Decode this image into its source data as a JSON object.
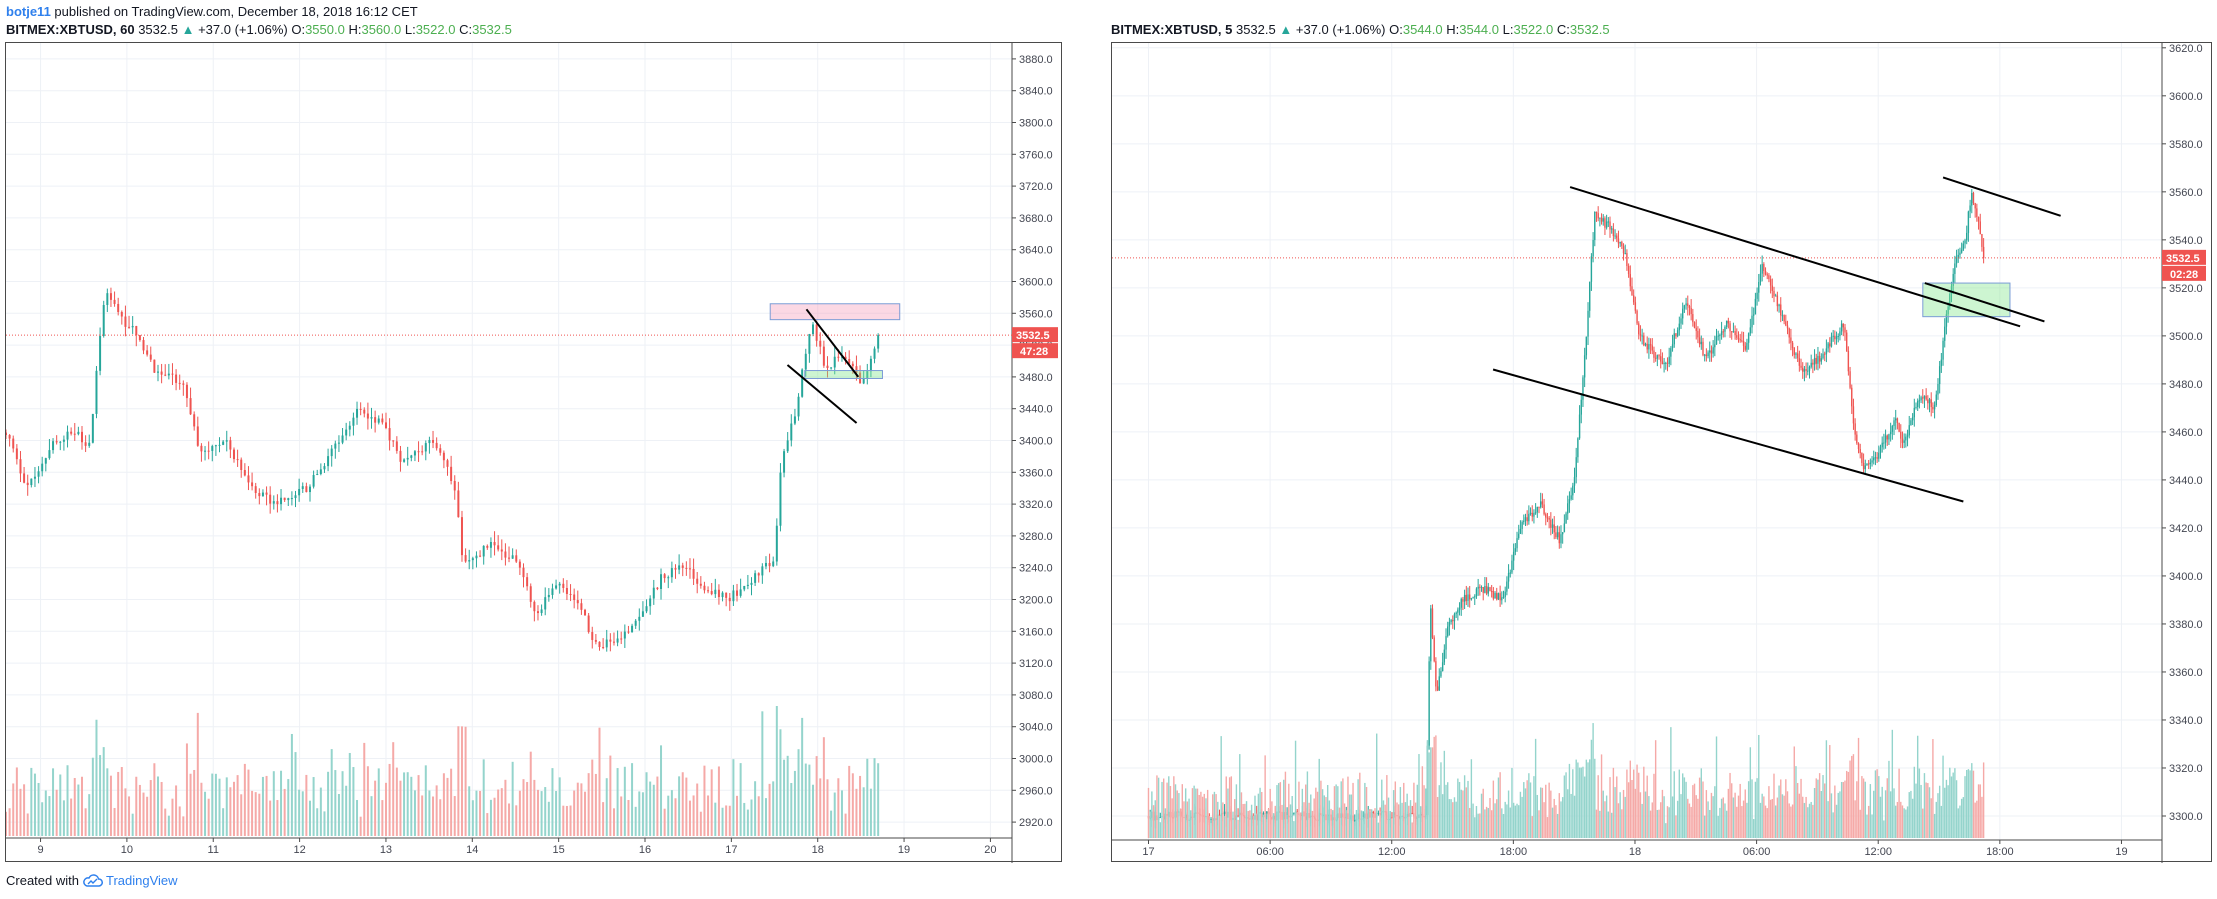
{
  "publish_line": {
    "author": "botje11",
    "text": "published on TradingView.com, December 18, 2018 16:12 CET"
  },
  "footer": {
    "created_with": "Created with",
    "brand": "TradingView"
  },
  "colors": {
    "up": "#26a69a",
    "down": "#ef5350",
    "up_vol": "#94d4cc",
    "down_vol": "#f5a9a7",
    "price_line": "#ef5350",
    "grid": "#eef1f6"
  },
  "chart_data": [
    {
      "type": "candlestick",
      "symbol": "BITMEX:XBTUSD, 60",
      "last": "3532.5",
      "change": "+37.0 (+1.06%)",
      "ohlc": {
        "O": "3550.0",
        "H": "3560.0",
        "L": "3522.0",
        "C": "3532.5"
      },
      "price_ticks": [
        "3880.0",
        "3840.0",
        "3800.0",
        "3760.0",
        "3720.0",
        "3680.0",
        "3640.0",
        "3600.0",
        "3560.0",
        "3520.0",
        "3480.0",
        "3440.0",
        "3400.0",
        "3360.0",
        "3320.0",
        "3280.0",
        "3240.0",
        "3200.0",
        "3160.0",
        "3120.0",
        "3080.0",
        "3040.0",
        "3000.0",
        "2960.0",
        "2920.0"
      ],
      "ylim": [
        2900,
        3900
      ],
      "time_ticks": [
        "9",
        "10",
        "11",
        "12",
        "13",
        "14",
        "15",
        "16",
        "17",
        "18",
        "19",
        "20"
      ],
      "x_range_days": [
        8.6,
        20.25
      ],
      "price_tag": "3532.5",
      "countdown_tag": "47:28",
      "series": [
        {
          "day": 8.6,
          "close": 3410
        },
        {
          "day": 8.85,
          "close": 3340
        },
        {
          "day": 9.15,
          "close": 3400
        },
        {
          "day": 9.45,
          "close": 3410
        },
        {
          "day": 9.55,
          "close": 3380
        },
        {
          "day": 9.75,
          "close": 3590
        },
        {
          "day": 9.95,
          "close": 3550
        },
        {
          "day": 10.1,
          "close": 3540
        },
        {
          "day": 10.3,
          "close": 3490
        },
        {
          "day": 10.65,
          "close": 3470
        },
        {
          "day": 10.85,
          "close": 3380
        },
        {
          "day": 11.15,
          "close": 3400
        },
        {
          "day": 11.45,
          "close": 3340
        },
        {
          "day": 11.7,
          "close": 3320
        },
        {
          "day": 12.1,
          "close": 3340
        },
        {
          "day": 12.45,
          "close": 3400
        },
        {
          "day": 12.7,
          "close": 3440
        },
        {
          "day": 12.95,
          "close": 3420
        },
        {
          "day": 13.2,
          "close": 3370
        },
        {
          "day": 13.55,
          "close": 3400
        },
        {
          "day": 13.8,
          "close": 3340
        },
        {
          "day": 13.9,
          "close": 3240
        },
        {
          "day": 14.2,
          "close": 3270
        },
        {
          "day": 14.5,
          "close": 3250
        },
        {
          "day": 14.75,
          "close": 3180
        },
        {
          "day": 14.95,
          "close": 3220
        },
        {
          "day": 15.2,
          "close": 3200
        },
        {
          "day": 15.45,
          "close": 3140
        },
        {
          "day": 15.7,
          "close": 3150
        },
        {
          "day": 16.0,
          "close": 3190
        },
        {
          "day": 16.2,
          "close": 3230
        },
        {
          "day": 16.45,
          "close": 3240
        },
        {
          "day": 16.75,
          "close": 3210
        },
        {
          "day": 16.95,
          "close": 3200
        },
        {
          "day": 17.3,
          "close": 3230
        },
        {
          "day": 17.5,
          "close": 3250
        },
        {
          "day": 17.58,
          "close": 3380
        },
        {
          "day": 17.75,
          "close": 3440
        },
        {
          "day": 17.92,
          "close": 3550
        },
        {
          "day": 18.1,
          "close": 3490
        },
        {
          "day": 18.3,
          "close": 3510
        },
        {
          "day": 18.5,
          "close": 3470
        },
        {
          "day": 18.62,
          "close": 3500
        },
        {
          "day": 18.7,
          "close": 3532.5
        }
      ],
      "drawings": {
        "resistance_box": {
          "day": [
            17.45,
            18.95
          ],
          "price": [
            3552,
            3572
          ]
        },
        "support_box": {
          "day": [
            17.85,
            18.75
          ],
          "price": [
            3478,
            3488
          ]
        },
        "trendlines": [
          {
            "from": {
              "day": 17.65,
              "price": 3495
            },
            "to": {
              "day": 18.45,
              "price": 3422
            }
          },
          {
            "from": {
              "day": 17.87,
              "price": 3565
            },
            "to": {
              "day": 18.47,
              "price": 3480
            }
          }
        ]
      }
    },
    {
      "type": "candlestick",
      "symbol": "BITMEX:XBTUSD, 5",
      "last": "3532.5",
      "change": "+37.0 (+1.06%)",
      "ohlc": {
        "O": "3544.0",
        "H": "3544.0",
        "L": "3522.0",
        "C": "3532.5"
      },
      "price_ticks": [
        "3620.0",
        "3600.0",
        "3580.0",
        "3560.0",
        "3540.0",
        "3520.0",
        "3500.0",
        "3480.0",
        "3460.0",
        "3440.0",
        "3420.0",
        "3400.0",
        "3380.0",
        "3360.0",
        "3340.0",
        "3320.0",
        "3300.0"
      ],
      "ylim": [
        3290,
        3622
      ],
      "time_ticks": [
        "17",
        "06:00",
        "12:00",
        "18:00",
        "18",
        "06:00",
        "12:00",
        "18:00",
        "19"
      ],
      "x_range_hours": [
        -1.8,
        50.0
      ],
      "price_tag": "3532.5",
      "countdown_tag": "02:28",
      "series": [
        {
          "h": 0,
          "close": 3300
        },
        {
          "h": 13.7,
          "close": 3300
        },
        {
          "h": 13.9,
          "close": 3390
        },
        {
          "h": 14.2,
          "close": 3350
        },
        {
          "h": 14.8,
          "close": 3380
        },
        {
          "h": 15.5,
          "close": 3390
        },
        {
          "h": 16.5,
          "close": 3395
        },
        {
          "h": 17.5,
          "close": 3390
        },
        {
          "h": 18.3,
          "close": 3420
        },
        {
          "h": 19.3,
          "close": 3430
        },
        {
          "h": 20.3,
          "close": 3415
        },
        {
          "h": 21.0,
          "close": 3440
        },
        {
          "h": 21.6,
          "close": 3500
        },
        {
          "h": 22.0,
          "close": 3550
        },
        {
          "h": 22.8,
          "close": 3545
        },
        {
          "h": 23.5,
          "close": 3535
        },
        {
          "h": 24.2,
          "close": 3500
        },
        {
          "h": 25.2,
          "close": 3490
        },
        {
          "h": 25.6,
          "close": 3490
        },
        {
          "h": 26.5,
          "close": 3515
        },
        {
          "h": 27.5,
          "close": 3490
        },
        {
          "h": 28.5,
          "close": 3505
        },
        {
          "h": 29.5,
          "close": 3495
        },
        {
          "h": 30.3,
          "close": 3530
        },
        {
          "h": 31.2,
          "close": 3510
        },
        {
          "h": 32.2,
          "close": 3485
        },
        {
          "h": 33.0,
          "close": 3490
        },
        {
          "h": 34.3,
          "close": 3505
        },
        {
          "h": 34.8,
          "close": 3460
        },
        {
          "h": 35.3,
          "close": 3445
        },
        {
          "h": 36.0,
          "close": 3450
        },
        {
          "h": 36.8,
          "close": 3465
        },
        {
          "h": 37.3,
          "close": 3455
        },
        {
          "h": 38.0,
          "close": 3475
        },
        {
          "h": 38.8,
          "close": 3470
        },
        {
          "h": 39.3,
          "close": 3505
        },
        {
          "h": 39.8,
          "close": 3530
        },
        {
          "h": 40.3,
          "close": 3540
        },
        {
          "h": 40.6,
          "close": 3560
        },
        {
          "h": 41.0,
          "close": 3545
        },
        {
          "h": 41.2,
          "close": 3532.5
        }
      ],
      "drawings": {
        "support_box": {
          "h": [
            38.2,
            42.5
          ],
          "price": [
            3508,
            3522
          ]
        },
        "trendlines": [
          {
            "from": {
              "h": 20.8,
              "price": 3562
            },
            "to": {
              "h": 43.0,
              "price": 3504
            }
          },
          {
            "from": {
              "h": 17.0,
              "price": 3486
            },
            "to": {
              "h": 40.2,
              "price": 3431
            }
          },
          {
            "from": {
              "h": 38.3,
              "price": 3522
            },
            "to": {
              "h": 44.2,
              "price": 3506
            }
          },
          {
            "from": {
              "h": 39.2,
              "price": 3566
            },
            "to": {
              "h": 45.0,
              "price": 3550
            }
          }
        ]
      }
    }
  ]
}
